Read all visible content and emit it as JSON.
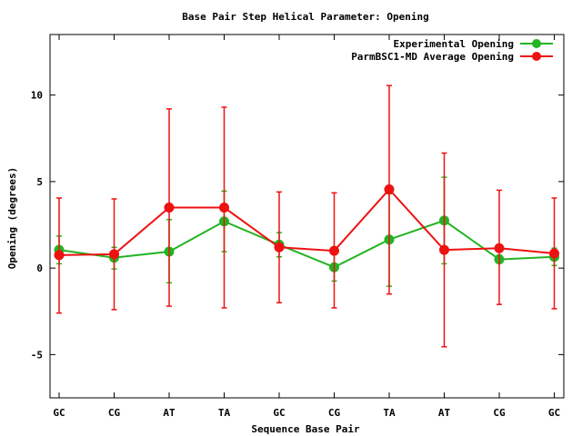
{
  "chart_data": {
    "type": "line",
    "title": "Base Pair Step Helical Parameter: Opening",
    "xlabel": "Sequence Base Pair",
    "ylabel": "Opening (degrees)",
    "categories": [
      "GC",
      "CG",
      "AT",
      "TA",
      "GC",
      "CG",
      "TA",
      "AT",
      "CG",
      "GC"
    ],
    "ylim": [
      -7.5,
      13.5
    ],
    "yticks": [
      -5,
      0,
      5,
      10
    ],
    "grid": false,
    "legend_position": "top-right",
    "series": [
      {
        "name": "Experimental Opening",
        "color": "#22b422",
        "values": [
          1.05,
          0.6,
          0.95,
          2.7,
          1.35,
          0.05,
          1.65,
          2.75,
          0.5,
          0.65
        ],
        "error_low": [
          0.25,
          -0.05,
          -0.85,
          0.95,
          0.65,
          -0.75,
          -1.05,
          0.25,
          0.3,
          0.15
        ],
        "error_high": [
          1.85,
          1.2,
          2.8,
          4.45,
          2.05,
          0.8,
          4.3,
          5.25,
          0.75,
          1.15
        ]
      },
      {
        "name": "ParmBSC1-MD Average Opening",
        "color": "#ee1111",
        "values": [
          0.75,
          0.8,
          3.5,
          3.5,
          1.2,
          1.0,
          4.55,
          1.05,
          1.15,
          0.85
        ],
        "error_low": [
          -2.6,
          -2.4,
          -2.2,
          -2.3,
          -2.0,
          -2.3,
          -1.5,
          -4.55,
          -2.1,
          -2.35
        ],
        "error_high": [
          4.05,
          4.0,
          9.2,
          9.3,
          4.4,
          4.35,
          10.55,
          6.65,
          4.5,
          4.05
        ]
      }
    ]
  }
}
